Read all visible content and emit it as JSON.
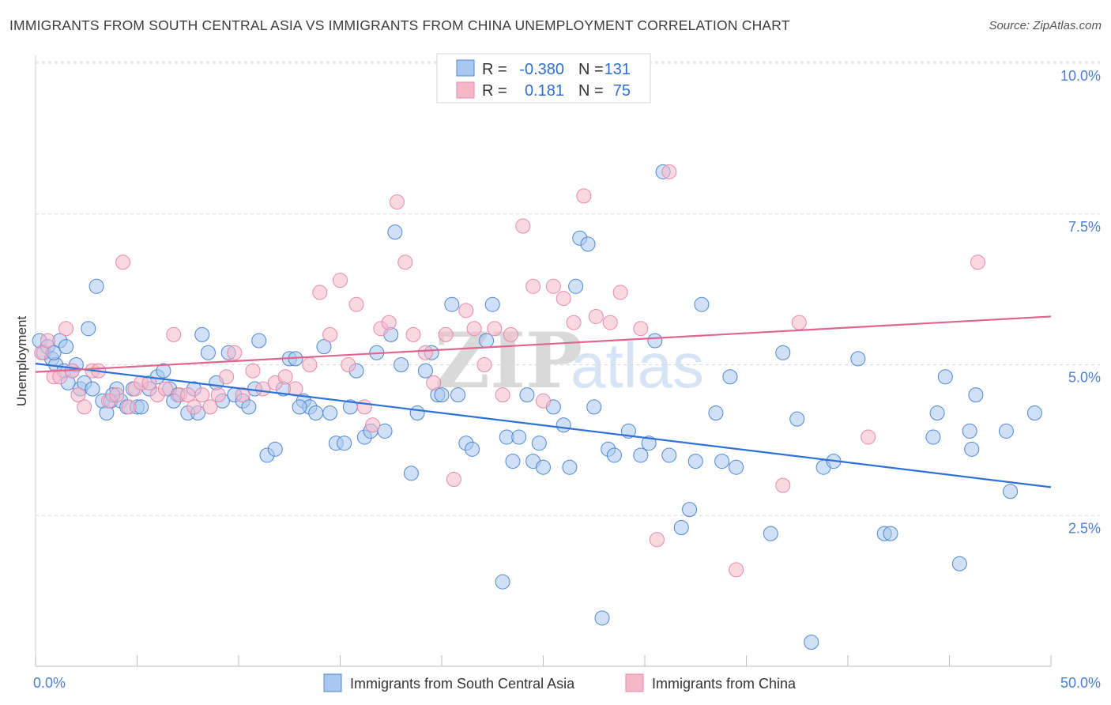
{
  "title": "IMMIGRANTS FROM SOUTH CENTRAL ASIA VS IMMIGRANTS FROM CHINA UNEMPLOYMENT CORRELATION CHART",
  "source": "Source: ZipAtlas.com",
  "watermark": {
    "zip": "ZIP",
    "atlas": "atlas"
  },
  "colors": {
    "blue_fill": "#a9c8f0",
    "blue_stroke": "#4f86d1",
    "blue_line": "#2f72d6",
    "pink_fill": "#f5b8cb",
    "pink_stroke": "#e58aa8",
    "pink_line": "#e0648e",
    "grid": "#d8d8d8",
    "tick_text": "#4a7fd0"
  },
  "stats": {
    "series1": {
      "r_label": "R =",
      "r_value": "-0.380",
      "n_label": "N =",
      "n_value": "131"
    },
    "series2": {
      "r_label": "R =",
      "r_value": "0.181",
      "n_label": "N =",
      "n_value": "75"
    }
  },
  "chart_data": {
    "type": "scatter",
    "title": "IMMIGRANTS FROM SOUTH CENTRAL ASIA VS IMMIGRANTS FROM CHINA UNEMPLOYMENT CORRELATION CHART",
    "xlabel": "",
    "ylabel": "Unemployment",
    "xlim": [
      0,
      50
    ],
    "ylim": [
      0,
      10
    ],
    "x_tick_labels": [
      "0.0%",
      "50.0%"
    ],
    "y_ticks": [
      2.5,
      5.0,
      7.5,
      10.0
    ],
    "y_tick_labels": [
      "2.5%",
      "5.0%",
      "7.5%",
      "10.0%"
    ],
    "grid": true,
    "legend_position": "bottom",
    "series": [
      {
        "name": "Immigrants from South Central Asia",
        "color": "#a9c8f0",
        "trend": {
          "x": [
            0,
            50
          ],
          "y": [
            5.02,
            2.97
          ]
        },
        "points": [
          [
            0.2,
            5.4
          ],
          [
            0.4,
            5.2
          ],
          [
            0.6,
            5.3
          ],
          [
            0.8,
            5.1
          ],
          [
            1.0,
            5.0
          ],
          [
            1.2,
            5.4
          ],
          [
            1.4,
            4.9
          ],
          [
            1.6,
            4.7
          ],
          [
            1.8,
            4.9
          ],
          [
            2.0,
            5.0
          ],
          [
            2.2,
            4.6
          ],
          [
            2.4,
            4.7
          ],
          [
            2.6,
            5.6
          ],
          [
            2.8,
            4.6
          ],
          [
            3.0,
            6.3
          ],
          [
            3.3,
            4.4
          ],
          [
            3.5,
            4.2
          ],
          [
            3.7,
            4.4
          ],
          [
            4.0,
            4.6
          ],
          [
            4.2,
            4.4
          ],
          [
            4.5,
            4.3
          ],
          [
            4.8,
            4.6
          ],
          [
            5.0,
            4.3
          ],
          [
            5.2,
            4.3
          ],
          [
            5.6,
            4.6
          ],
          [
            6.0,
            4.8
          ],
          [
            6.3,
            4.9
          ],
          [
            6.6,
            4.6
          ],
          [
            7.0,
            4.5
          ],
          [
            7.5,
            4.2
          ],
          [
            7.8,
            4.6
          ],
          [
            8.0,
            4.2
          ],
          [
            8.2,
            5.5
          ],
          [
            8.5,
            5.2
          ],
          [
            8.9,
            4.7
          ],
          [
            9.2,
            4.4
          ],
          [
            9.5,
            5.2
          ],
          [
            9.8,
            4.5
          ],
          [
            10.2,
            4.4
          ],
          [
            10.5,
            4.3
          ],
          [
            10.8,
            4.6
          ],
          [
            11.0,
            5.4
          ],
          [
            11.4,
            3.5
          ],
          [
            11.8,
            3.6
          ],
          [
            12.2,
            4.6
          ],
          [
            12.5,
            5.1
          ],
          [
            12.8,
            5.1
          ],
          [
            13.2,
            4.4
          ],
          [
            13.5,
            4.3
          ],
          [
            13.8,
            4.2
          ],
          [
            14.2,
            5.3
          ],
          [
            14.5,
            4.2
          ],
          [
            14.8,
            3.7
          ],
          [
            15.2,
            3.7
          ],
          [
            15.5,
            4.3
          ],
          [
            15.8,
            4.9
          ],
          [
            16.2,
            3.8
          ],
          [
            16.5,
            3.9
          ],
          [
            16.8,
            5.2
          ],
          [
            17.2,
            3.9
          ],
          [
            17.5,
            5.5
          ],
          [
            17.7,
            7.2
          ],
          [
            18.0,
            5.0
          ],
          [
            18.5,
            3.2
          ],
          [
            18.8,
            4.2
          ],
          [
            19.2,
            4.9
          ],
          [
            19.5,
            5.2
          ],
          [
            19.8,
            4.5
          ],
          [
            20.0,
            4.5
          ],
          [
            20.5,
            6.0
          ],
          [
            20.8,
            4.5
          ],
          [
            21.2,
            3.7
          ],
          [
            21.5,
            3.6
          ],
          [
            22.2,
            5.4
          ],
          [
            22.5,
            6.0
          ],
          [
            23.0,
            1.4
          ],
          [
            23.2,
            3.8
          ],
          [
            23.5,
            3.4
          ],
          [
            23.8,
            3.8
          ],
          [
            24.2,
            4.5
          ],
          [
            24.5,
            3.4
          ],
          [
            24.8,
            3.7
          ],
          [
            25.0,
            3.3
          ],
          [
            25.5,
            4.3
          ],
          [
            26.0,
            4.0
          ],
          [
            26.3,
            3.3
          ],
          [
            26.6,
            6.3
          ],
          [
            26.8,
            7.1
          ],
          [
            27.2,
            7.0
          ],
          [
            27.5,
            4.3
          ],
          [
            27.9,
            0.8
          ],
          [
            28.2,
            3.6
          ],
          [
            28.5,
            3.5
          ],
          [
            29.2,
            3.9
          ],
          [
            29.8,
            3.5
          ],
          [
            30.2,
            3.7
          ],
          [
            30.5,
            5.4
          ],
          [
            30.9,
            8.2
          ],
          [
            31.2,
            3.5
          ],
          [
            31.8,
            2.3
          ],
          [
            32.2,
            2.6
          ],
          [
            32.5,
            3.4
          ],
          [
            32.8,
            6.0
          ],
          [
            33.5,
            4.2
          ],
          [
            33.8,
            3.4
          ],
          [
            34.2,
            4.8
          ],
          [
            34.5,
            3.3
          ],
          [
            36.2,
            2.2
          ],
          [
            36.8,
            5.2
          ],
          [
            37.5,
            4.1
          ],
          [
            38.2,
            0.4
          ],
          [
            38.8,
            3.3
          ],
          [
            39.3,
            3.4
          ],
          [
            40.5,
            5.1
          ],
          [
            41.8,
            2.2
          ],
          [
            42.1,
            2.2
          ],
          [
            44.2,
            3.8
          ],
          [
            44.4,
            4.2
          ],
          [
            44.8,
            4.8
          ],
          [
            45.5,
            1.7
          ],
          [
            46.0,
            3.9
          ],
          [
            46.1,
            3.6
          ],
          [
            46.3,
            4.5
          ],
          [
            47.8,
            3.9
          ],
          [
            48.0,
            2.9
          ],
          [
            49.2,
            4.2
          ],
          [
            0.9,
            5.2
          ],
          [
            1.5,
            5.3
          ],
          [
            3.8,
            4.5
          ],
          [
            6.8,
            4.4
          ],
          [
            13.0,
            4.3
          ]
        ]
      },
      {
        "name": "Immigrants from China",
        "color": "#f5b8cb",
        "trend": {
          "x": [
            0,
            50
          ],
          "y": [
            4.88,
            5.8
          ]
        },
        "points": [
          [
            0.3,
            5.2
          ],
          [
            0.6,
            5.4
          ],
          [
            0.9,
            4.8
          ],
          [
            1.2,
            4.8
          ],
          [
            1.5,
            5.6
          ],
          [
            1.8,
            4.9
          ],
          [
            2.1,
            4.5
          ],
          [
            2.4,
            4.3
          ],
          [
            2.8,
            4.9
          ],
          [
            3.1,
            4.9
          ],
          [
            3.6,
            4.4
          ],
          [
            4.0,
            4.5
          ],
          [
            4.3,
            6.7
          ],
          [
            4.6,
            4.3
          ],
          [
            4.9,
            4.6
          ],
          [
            5.2,
            4.7
          ],
          [
            5.6,
            4.7
          ],
          [
            6.0,
            4.5
          ],
          [
            6.4,
            4.6
          ],
          [
            6.8,
            5.5
          ],
          [
            7.1,
            4.5
          ],
          [
            7.5,
            4.5
          ],
          [
            7.8,
            4.3
          ],
          [
            8.2,
            4.5
          ],
          [
            8.6,
            4.3
          ],
          [
            9.0,
            4.5
          ],
          [
            9.4,
            4.8
          ],
          [
            9.8,
            5.2
          ],
          [
            10.2,
            4.5
          ],
          [
            10.7,
            4.9
          ],
          [
            11.2,
            4.6
          ],
          [
            11.8,
            4.7
          ],
          [
            12.3,
            4.8
          ],
          [
            12.8,
            4.6
          ],
          [
            13.5,
            5.0
          ],
          [
            14.0,
            6.2
          ],
          [
            14.5,
            5.5
          ],
          [
            15.0,
            6.4
          ],
          [
            15.4,
            5.0
          ],
          [
            15.8,
            6.0
          ],
          [
            16.2,
            4.3
          ],
          [
            16.6,
            4.0
          ],
          [
            17.0,
            5.6
          ],
          [
            17.4,
            5.7
          ],
          [
            17.8,
            7.7
          ],
          [
            18.2,
            6.7
          ],
          [
            18.6,
            5.5
          ],
          [
            19.2,
            5.2
          ],
          [
            19.6,
            4.7
          ],
          [
            20.2,
            5.5
          ],
          [
            20.6,
            3.1
          ],
          [
            21.2,
            5.9
          ],
          [
            21.6,
            5.6
          ],
          [
            22.1,
            5.0
          ],
          [
            22.6,
            5.6
          ],
          [
            23.0,
            4.5
          ],
          [
            23.4,
            5.5
          ],
          [
            24.0,
            7.3
          ],
          [
            24.5,
            6.3
          ],
          [
            25.0,
            4.4
          ],
          [
            25.5,
            6.3
          ],
          [
            26.0,
            6.1
          ],
          [
            26.5,
            5.7
          ],
          [
            27.0,
            7.8
          ],
          [
            27.6,
            5.8
          ],
          [
            28.3,
            5.7
          ],
          [
            28.8,
            6.2
          ],
          [
            29.8,
            5.6
          ],
          [
            30.6,
            2.1
          ],
          [
            31.2,
            8.2
          ],
          [
            34.5,
            1.6
          ],
          [
            36.8,
            3.0
          ],
          [
            37.6,
            5.7
          ],
          [
            41.0,
            3.8
          ],
          [
            46.4,
            6.7
          ]
        ]
      }
    ]
  },
  "legend": {
    "series1": "Immigrants from South Central Asia",
    "series2": "Immigrants from China"
  }
}
